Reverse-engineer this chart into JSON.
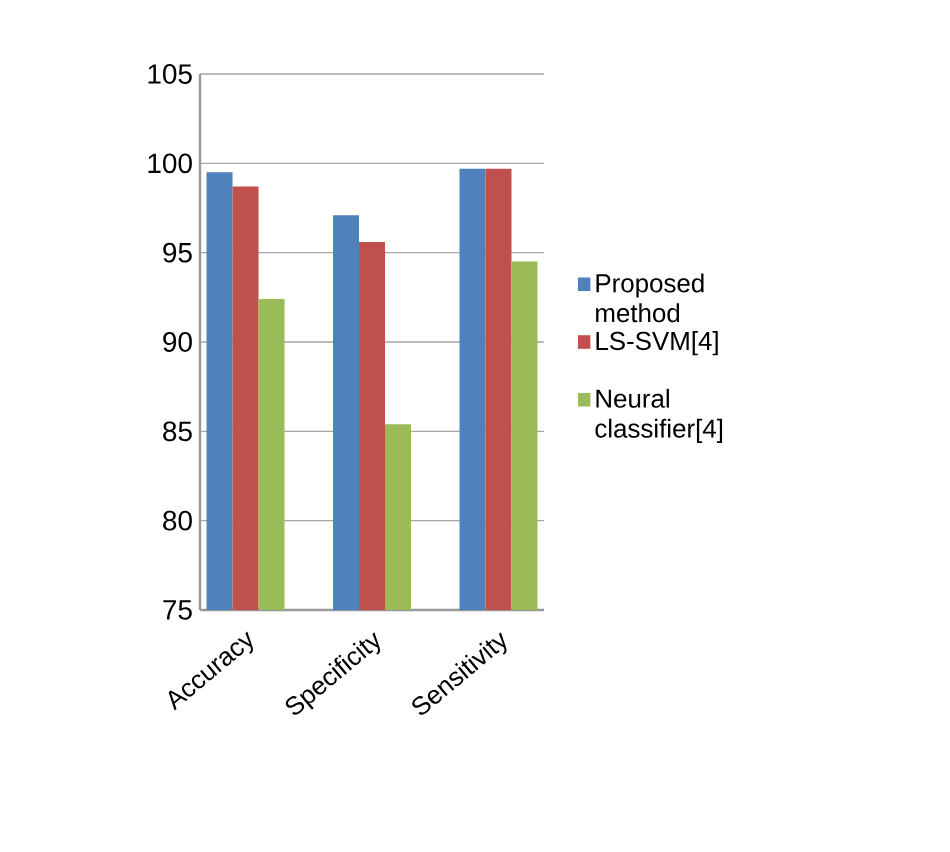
{
  "chart_data": {
    "type": "bar",
    "categories": [
      "Accuracy",
      "Specificity",
      "Sensitivity"
    ],
    "series": [
      {
        "name": "Proposed method",
        "color": "#4f81bd",
        "values": [
          99.5,
          97.1,
          99.7
        ]
      },
      {
        "name": "LS-SVM[4]",
        "color": "#c0504d",
        "values": [
          98.7,
          95.6,
          99.7
        ]
      },
      {
        "name": "Neural classifier[4]",
        "color": "#9bbb59",
        "values": [
          92.4,
          85.4,
          94.5
        ]
      }
    ],
    "ylim": [
      75,
      105
    ],
    "yticks": [
      75,
      80,
      85,
      90,
      95,
      100,
      105
    ],
    "grid": "y",
    "legend": "right"
  }
}
